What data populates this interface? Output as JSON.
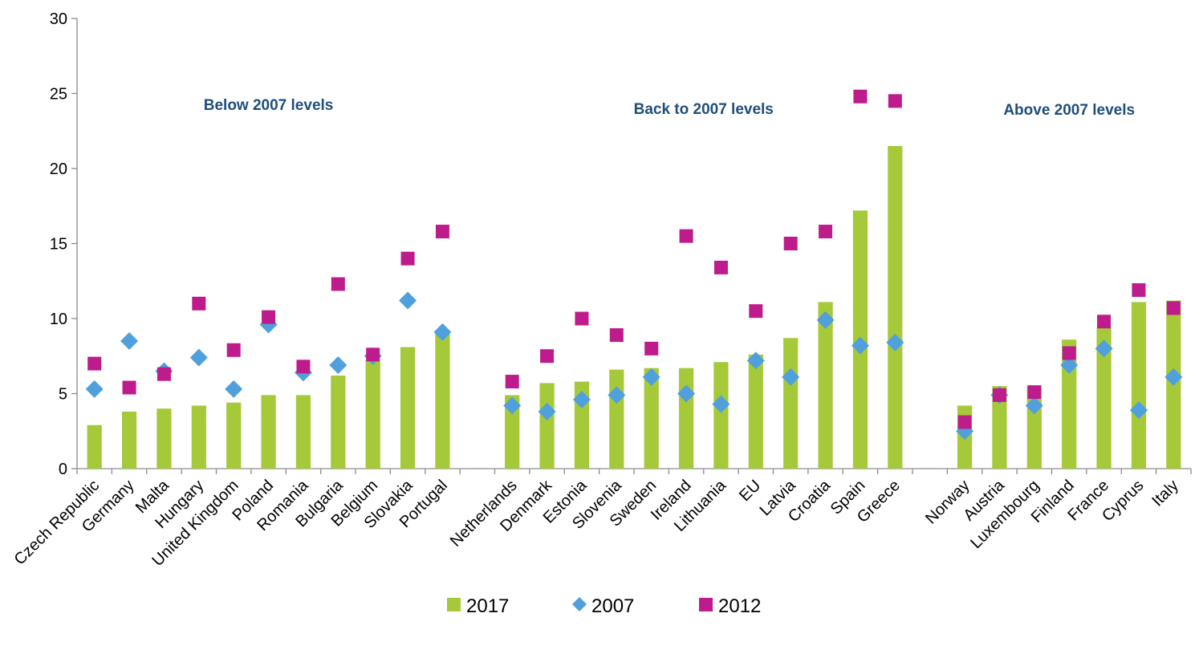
{
  "chart_data": {
    "type": "bar",
    "title": "",
    "xlabel": "",
    "ylabel": "",
    "ylim": [
      0,
      30
    ],
    "yticks": [
      0,
      5,
      10,
      15,
      20,
      25,
      30
    ],
    "grid": false,
    "legend_position": "bottom",
    "categories": [
      "Czech Republic",
      "Germany",
      "Malta",
      "Hungary",
      "United Kingdom",
      "Poland",
      "Romania",
      "Bulgaria",
      "Belgium",
      "Slovakia",
      "Portugal",
      "",
      "Netherlands",
      "Denmark",
      "Estonia",
      "Slovenia",
      "Sweden",
      "Ireland",
      "Lithuania",
      "EU",
      "Latvia",
      "Croatia",
      "Spain",
      "Greece",
      "",
      "Norway",
      "Austria",
      "Luxembourg",
      "Finland",
      "France",
      "Cyprus",
      "Italy"
    ],
    "groups": [
      {
        "label": "Below 2007 levels",
        "start": 0,
        "end": 10
      },
      {
        "label": "Back to 2007 levels",
        "start": 12,
        "end": 23
      },
      {
        "label": "Above 2007 levels",
        "start": 25,
        "end": 31
      }
    ],
    "series": [
      {
        "name": "2017",
        "type": "bar",
        "color": "#a6c93a",
        "marker": "square",
        "values": [
          2.9,
          3.8,
          4.0,
          4.2,
          4.4,
          4.9,
          4.9,
          6.2,
          7.2,
          8.1,
          9.0,
          null,
          4.9,
          5.7,
          5.8,
          6.6,
          6.7,
          6.7,
          7.1,
          7.6,
          8.7,
          11.1,
          17.2,
          21.5,
          null,
          4.2,
          5.5,
          5.5,
          8.6,
          9.4,
          11.1,
          11.2
        ]
      },
      {
        "name": "2007",
        "type": "scatter",
        "color": "#4fa0dc",
        "marker": "diamond",
        "values": [
          5.3,
          8.5,
          6.5,
          7.4,
          5.3,
          9.6,
          6.4,
          6.9,
          7.5,
          11.2,
          9.1,
          null,
          4.2,
          3.8,
          4.6,
          4.9,
          6.1,
          5.0,
          4.3,
          7.2,
          6.1,
          9.9,
          8.2,
          8.4,
          null,
          2.5,
          4.9,
          4.2,
          6.9,
          8.0,
          3.9,
          6.1
        ]
      },
      {
        "name": "2012",
        "type": "scatter",
        "color": "#be1c8c",
        "marker": "square",
        "values": [
          7.0,
          5.4,
          6.3,
          11.0,
          7.9,
          10.1,
          6.8,
          12.3,
          7.6,
          14.0,
          15.8,
          null,
          5.8,
          7.5,
          10.0,
          8.9,
          8.0,
          15.5,
          13.4,
          10.5,
          15.0,
          15.8,
          24.8,
          24.5,
          null,
          3.1,
          4.9,
          5.1,
          7.7,
          9.8,
          11.9,
          10.7
        ]
      }
    ]
  }
}
